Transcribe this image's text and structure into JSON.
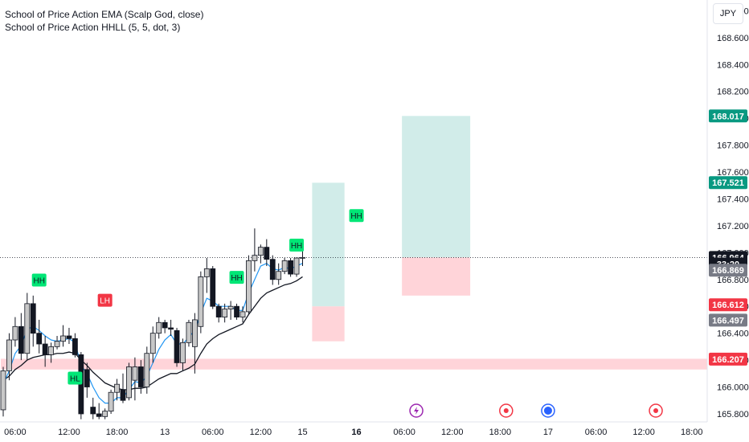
{
  "legend": {
    "line1": "School of Price Action EMA (Scalp God, close)",
    "line2": "School of Price Action HHLL (5, 5, dot, 3)"
  },
  "currency": "JPY",
  "chart_data": {
    "type": "candlestick",
    "y_axis": {
      "range": [
        165.74,
        168.88
      ],
      "ticks": [
        "165.800",
        "166.000",
        "166.200",
        "166.400",
        "166.600",
        "166.800",
        "167.000",
        "167.200",
        "167.400",
        "167.600",
        "167.800",
        "168.000",
        "168.200",
        "168.400",
        "168.600",
        "168.800"
      ]
    },
    "x_axis": {
      "ticks": [
        {
          "label": "06:00",
          "i": 2
        },
        {
          "label": "12:00",
          "i": 11
        },
        {
          "label": "18:00",
          "i": 19
        },
        {
          "label": "13",
          "i": 27,
          "bold": false
        },
        {
          "label": "06:00",
          "i": 35
        },
        {
          "label": "12:00",
          "i": 43
        },
        {
          "label": "15",
          "i": 50
        },
        {
          "label": "16",
          "i": 59,
          "bold": true
        },
        {
          "label": "06:00",
          "i": 67
        },
        {
          "label": "12:00",
          "i": 75
        },
        {
          "label": "18:00",
          "i": 83
        },
        {
          "label": "17",
          "i": 91
        },
        {
          "label": "06:00",
          "i": 99
        },
        {
          "label": "12:00",
          "i": 107
        },
        {
          "label": "18:00",
          "i": 115
        }
      ]
    },
    "candles": [
      {
        "o": 165.83,
        "h": 166.15,
        "l": 165.78,
        "c": 166.12
      },
      {
        "o": 166.12,
        "h": 166.4,
        "l": 166.05,
        "c": 166.35
      },
      {
        "o": 166.35,
        "h": 166.52,
        "l": 166.3,
        "c": 166.45
      },
      {
        "o": 166.45,
        "h": 166.55,
        "l": 166.2,
        "c": 166.25
      },
      {
        "o": 166.25,
        "h": 166.7,
        "l": 166.2,
        "c": 166.62
      },
      {
        "o": 166.62,
        "h": 166.68,
        "l": 166.3,
        "c": 166.4
      },
      {
        "o": 166.4,
        "h": 166.5,
        "l": 166.25,
        "c": 166.32
      },
      {
        "o": 166.32,
        "h": 166.38,
        "l": 166.15,
        "c": 166.24
      },
      {
        "o": 166.24,
        "h": 166.33,
        "l": 166.18,
        "c": 166.3
      },
      {
        "o": 166.3,
        "h": 166.38,
        "l": 166.28,
        "c": 166.34
      },
      {
        "o": 166.34,
        "h": 166.46,
        "l": 166.3,
        "c": 166.38
      },
      {
        "o": 166.38,
        "h": 166.44,
        "l": 166.32,
        "c": 166.36
      },
      {
        "o": 166.36,
        "h": 166.4,
        "l": 166.22,
        "c": 166.24
      },
      {
        "o": 166.24,
        "h": 166.26,
        "l": 165.76,
        "c": 165.8
      },
      {
        "o": 166.13,
        "h": 166.18,
        "l": 165.92,
        "c": 166.0
      },
      {
        "o": 165.85,
        "h": 165.92,
        "l": 165.76,
        "c": 165.8
      },
      {
        "o": 165.8,
        "h": 165.88,
        "l": 165.76,
        "c": 165.78
      },
      {
        "o": 165.78,
        "h": 165.84,
        "l": 165.76,
        "c": 165.82
      },
      {
        "o": 165.82,
        "h": 165.98,
        "l": 165.8,
        "c": 165.96
      },
      {
        "o": 165.96,
        "h": 166.06,
        "l": 165.9,
        "c": 166.02
      },
      {
        "o": 165.98,
        "h": 166.1,
        "l": 165.88,
        "c": 165.9
      },
      {
        "o": 165.92,
        "h": 166.18,
        "l": 165.9,
        "c": 166.15
      },
      {
        "o": 166.05,
        "h": 166.22,
        "l": 165.9,
        "c": 166.15
      },
      {
        "o": 166.15,
        "h": 166.2,
        "l": 165.95,
        "c": 166.0
      },
      {
        "o": 166.0,
        "h": 166.3,
        "l": 165.95,
        "c": 166.25
      },
      {
        "o": 166.25,
        "h": 166.45,
        "l": 166.18,
        "c": 166.4
      },
      {
        "o": 166.4,
        "h": 166.52,
        "l": 166.36,
        "c": 166.48
      },
      {
        "o": 166.48,
        "h": 166.5,
        "l": 166.4,
        "c": 166.44
      },
      {
        "o": 166.44,
        "h": 166.5,
        "l": 166.38,
        "c": 166.43
      },
      {
        "o": 166.42,
        "h": 166.44,
        "l": 166.15,
        "c": 166.18
      },
      {
        "o": 166.18,
        "h": 166.36,
        "l": 166.12,
        "c": 166.33
      },
      {
        "o": 166.33,
        "h": 166.5,
        "l": 166.3,
        "c": 166.48
      },
      {
        "o": 166.3,
        "h": 166.55,
        "l": 166.1,
        "c": 166.5
      },
      {
        "o": 166.45,
        "h": 166.86,
        "l": 166.4,
        "c": 166.82
      },
      {
        "o": 166.82,
        "h": 166.96,
        "l": 166.7,
        "c": 166.88
      },
      {
        "o": 166.88,
        "h": 166.9,
        "l": 166.58,
        "c": 166.6
      },
      {
        "o": 166.6,
        "h": 166.62,
        "l": 166.48,
        "c": 166.52
      },
      {
        "o": 166.52,
        "h": 166.62,
        "l": 166.48,
        "c": 166.58
      },
      {
        "o": 166.58,
        "h": 166.64,
        "l": 166.5,
        "c": 166.6
      },
      {
        "o": 166.6,
        "h": 166.62,
        "l": 166.5,
        "c": 166.52
      },
      {
        "o": 166.52,
        "h": 166.6,
        "l": 166.48,
        "c": 166.56
      },
      {
        "o": 166.56,
        "h": 166.98,
        "l": 166.54,
        "c": 166.94
      },
      {
        "o": 166.94,
        "h": 167.18,
        "l": 166.86,
        "c": 166.98
      },
      {
        "o": 166.98,
        "h": 167.06,
        "l": 166.92,
        "c": 167.04
      },
      {
        "o": 167.04,
        "h": 167.1,
        "l": 166.9,
        "c": 166.95
      },
      {
        "o": 166.95,
        "h": 166.98,
        "l": 166.76,
        "c": 166.8
      },
      {
        "o": 166.8,
        "h": 166.92,
        "l": 166.76,
        "c": 166.86
      },
      {
        "o": 166.86,
        "h": 166.96,
        "l": 166.84,
        "c": 166.94
      },
      {
        "o": 166.94,
        "h": 166.96,
        "l": 166.82,
        "c": 166.84
      },
      {
        "o": 166.84,
        "h": 166.96,
        "l": 166.82,
        "c": 166.96
      },
      {
        "o": 166.96,
        "h": 167.04,
        "l": 166.9,
        "c": 166.964
      }
    ],
    "ema_fast": [
      166.02,
      166.12,
      166.25,
      166.31,
      166.43,
      166.45,
      166.42,
      166.38,
      166.35,
      166.34,
      166.35,
      166.36,
      166.33,
      166.16,
      166.1,
      166.0,
      165.92,
      165.88,
      165.88,
      165.92,
      165.92,
      165.98,
      166.04,
      166.03,
      166.08,
      166.18,
      166.28,
      166.35,
      166.39,
      166.32,
      166.32,
      166.37,
      166.42,
      166.55,
      166.66,
      166.64,
      166.6,
      166.6,
      166.6,
      166.57,
      166.57,
      166.7,
      166.8,
      166.9,
      166.92,
      166.88,
      166.87,
      166.89,
      166.88,
      166.9,
      166.92
    ],
    "ema_slow": [
      166.05,
      166.08,
      166.13,
      166.16,
      166.2,
      166.22,
      166.23,
      166.24,
      166.24,
      166.25,
      166.25,
      166.26,
      166.25,
      166.2,
      166.16,
      166.11,
      166.07,
      166.03,
      166.01,
      165.99,
      165.98,
      165.98,
      165.99,
      165.99,
      166.0,
      166.03,
      166.06,
      166.08,
      166.1,
      166.1,
      166.12,
      166.14,
      166.17,
      166.25,
      166.32,
      166.36,
      166.39,
      166.41,
      166.43,
      166.45,
      166.47,
      166.54,
      166.6,
      166.66,
      166.7,
      166.72,
      166.74,
      166.76,
      166.77,
      166.79,
      166.82
    ],
    "labels": [
      {
        "text": "HH",
        "i": 6,
        "price": 166.7,
        "pos": "above",
        "color": "#00e676"
      },
      {
        "text": "HL",
        "i": 12,
        "price": 166.15,
        "pos": "below",
        "color": "#00e676"
      },
      {
        "text": "LH",
        "i": 17,
        "price": 166.55,
        "pos": "above",
        "color": "#f23645"
      },
      {
        "text": "HH",
        "i": 39,
        "price": 166.72,
        "pos": "above",
        "color": "#00e676"
      },
      {
        "text": "HH",
        "i": 49,
        "price": 166.96,
        "pos": "above",
        "color": "#00e676"
      },
      {
        "text": "HH",
        "i": 59,
        "price": 167.18,
        "pos": "above",
        "color": "#00e676"
      }
    ],
    "zones": [
      {
        "type": "loss",
        "i0": 0,
        "i1": 120,
        "p0": 166.13,
        "p1": 166.21
      },
      {
        "type": "profit",
        "i0": 52,
        "i1": 57,
        "p0": 166.6,
        "p1": 167.52
      },
      {
        "type": "loss",
        "i0": 52,
        "i1": 57,
        "p0": 166.34,
        "p1": 166.6
      },
      {
        "type": "profit",
        "i0": 67,
        "i1": 78,
        "p0": 166.964,
        "p1": 168.017
      },
      {
        "type": "loss",
        "i0": 67,
        "i1": 78,
        "p0": 166.68,
        "p1": 166.964
      }
    ],
    "price_labels": [
      {
        "text": "168.017",
        "price": 168.017,
        "bg": "#089981"
      },
      {
        "text": "167.521",
        "price": 167.521,
        "bg": "#089981"
      },
      {
        "text": "166.964",
        "price": 166.964,
        "bg": "#131722"
      },
      {
        "text": "33:20",
        "price": 166.915,
        "bg": "#131722"
      },
      {
        "text": "166.869",
        "price": 166.869,
        "bg": "#787b86"
      },
      {
        "text": "166.612",
        "price": 166.612,
        "bg": "#f23645"
      },
      {
        "text": "166.497",
        "price": 166.497,
        "bg": "#787b86"
      },
      {
        "text": "166.207",
        "price": 166.207,
        "bg": "#f23645"
      }
    ],
    "current_price": 166.964,
    "colors": {
      "up": "#c8c8c8",
      "down": "#131722",
      "ema_fast": "#2196f3",
      "ema_slow": "#131722",
      "profit": "#b2dfdb",
      "loss": "#ffcdd2"
    }
  },
  "events": [
    {
      "icon": "lightning-event-icon",
      "i": 69,
      "color": "#9c27b0"
    },
    {
      "icon": "red-target-icon",
      "i": 84,
      "color": "#f23645"
    },
    {
      "icon": "globe-event-icon",
      "i": 91,
      "color": "#2962ff"
    },
    {
      "icon": "red-target-icon",
      "i": 109,
      "color": "#f23645"
    }
  ]
}
